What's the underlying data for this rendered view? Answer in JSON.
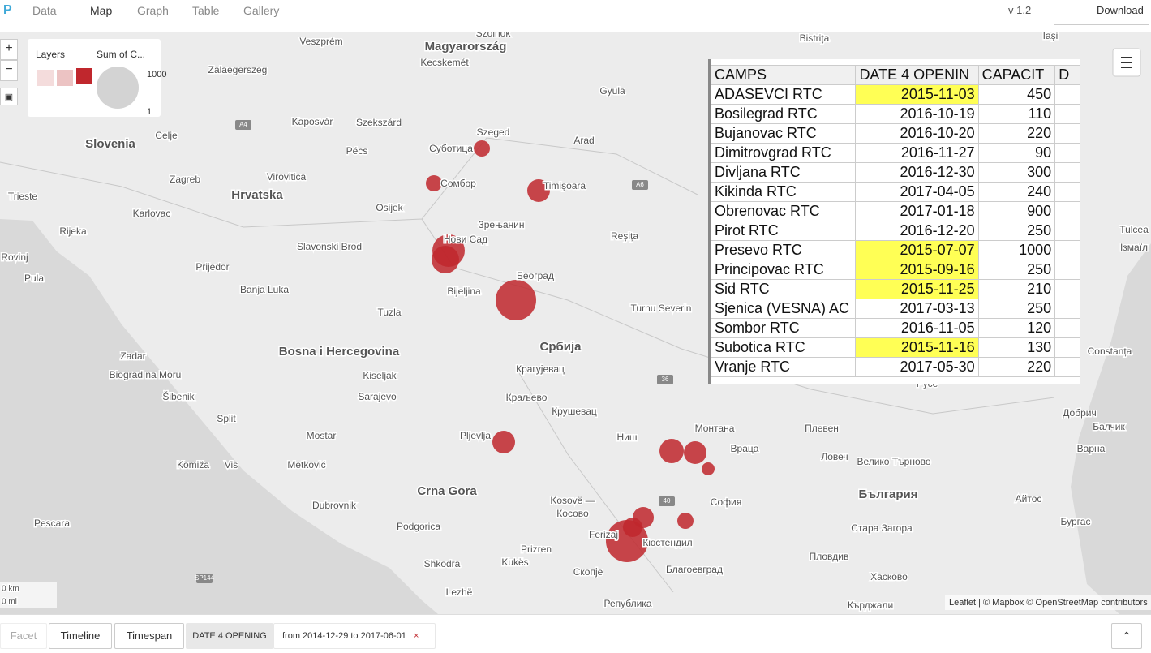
{
  "nav": {
    "logo": "P",
    "tabs": [
      "Data",
      "Map",
      "Graph",
      "Table",
      "Gallery"
    ],
    "active": 1,
    "version": "v 1.2",
    "download": "Download"
  },
  "map": {
    "labels": [
      "Magyarország",
      "Kecskemét",
      "Szolnok",
      "Veszprém",
      "Zalaegerszeg",
      "Slovenia",
      "Hrvatska",
      "Bosna i Hercegovina",
      "Србија",
      "Crna Gora",
      "България",
      "Gyula",
      "Szeged",
      "Суботица",
      "Сомбор",
      "Timișoara",
      "Arad",
      "Kaposvár",
      "Szekszárd",
      "Pécs",
      "Celje",
      "Virovitica",
      "Zagreb",
      "Trieste",
      "Karlovac",
      "Osijek",
      "Rijeka",
      "Зрењанин",
      "Нови Сад",
      "Reșița",
      "Slavonski Brod",
      "Rovinj",
      "Prijedor",
      "Pula",
      "Banja Luka",
      "Београд",
      "Bijeljina",
      "Tuzla",
      "Turnu Severin",
      "Zadar",
      "Biograd na Moru",
      "Kiseljak",
      "Крагујевац",
      "Sarajevo",
      "Šibenik",
      "Краљево",
      "Крушевац",
      "Split",
      "Pljevlja",
      "Mostar",
      "Ниш",
      "Монтана",
      "Плевен",
      "Враца",
      "Ловеч",
      "Велико Търново",
      "Komiža",
      "Vis",
      "Metković",
      "Dubrovnik",
      "Kosovë —",
      "Косово",
      "София",
      "Podgorica",
      "Pescara",
      "Ferizaj",
      "Кюстендил",
      "Стара Загора",
      "Prizren",
      "Shkodra",
      "Kukës",
      "Скопје",
      "Благоевград",
      "Пловдив",
      "Хасково",
      "Република",
      "Кърджали",
      "Lezhë",
      "Bistrița",
      "Iași",
      "Tulcea",
      "Ізмаїл",
      "Constanța",
      "Добрич",
      "Балчик",
      "Варна",
      "Бургас",
      "Айтос",
      "Русе",
      "A4",
      "A6",
      "36",
      "40",
      "SP144"
    ],
    "legend": {
      "title": "Layers",
      "size_title": "Sum of C...",
      "max": "1000",
      "min": "1"
    },
    "scale": [
      "0 km",
      "0 mi"
    ],
    "attribution": "Leaflet | © Mapbox © OpenStreetMap contributors",
    "zoom_in": "+",
    "zoom_out": "−"
  },
  "table": {
    "headers": [
      "CAMPS",
      "DATE 4 OPENIN",
      "CAPACIT",
      "D"
    ],
    "rows": [
      [
        "ADASEVCI RTC",
        "2015-11-03",
        450
      ],
      [
        "Bosilegrad RTC",
        "2016-10-19",
        110
      ],
      [
        "Bujanovac RTC",
        "2016-10-20",
        220
      ],
      [
        "Dimitrovgrad RTC",
        "2016-11-27",
        90
      ],
      [
        "Divljana RTC",
        "2016-12-30",
        300
      ],
      [
        "Kikinda RTC",
        "2017-04-05",
        240
      ],
      [
        "Obrenovac RTC",
        "2017-01-18",
        900
      ],
      [
        "Pirot RTC",
        "2016-12-20",
        250
      ],
      [
        "Presevo RTC",
        "2015-07-07",
        1000
      ],
      [
        "Principovac RTC",
        "2015-09-16",
        250
      ],
      [
        "Sid RTC",
        "2015-11-25",
        210
      ],
      [
        "Sjenica (VESNA) AC",
        "2017-03-13",
        250
      ],
      [
        "Sombor RTC",
        "2016-11-05",
        120
      ],
      [
        "Subotica RTC",
        "2015-11-16",
        130
      ],
      [
        "Vranje RTC",
        "2017-05-30",
        220
      ]
    ],
    "highlighted": [
      true,
      false,
      false,
      false,
      false,
      false,
      false,
      false,
      true,
      true,
      true,
      false,
      false,
      true,
      false
    ]
  },
  "filter": {
    "facet": "Facet",
    "timeline": "Timeline",
    "timespan": "Timespan",
    "field": "DATE 4 OPENING",
    "range": "from 2014-12-29 to 2017-06-01",
    "remove": "×"
  }
}
